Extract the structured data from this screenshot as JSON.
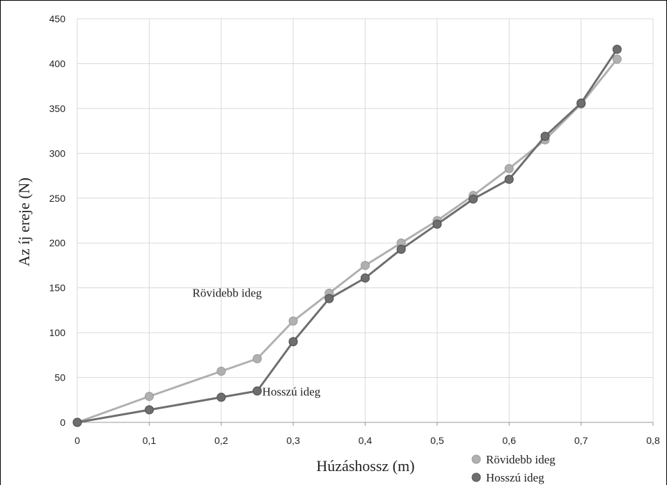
{
  "chart_data": {
    "type": "line",
    "title": "",
    "xlabel": "Húzáshossz (m)",
    "ylabel": "Az íj ereje (N)",
    "xlim": [
      0,
      0.8
    ],
    "ylim": [
      0,
      450
    ],
    "x_ticks": [
      0,
      0.1,
      0.2,
      0.3,
      0.4,
      0.5,
      0.6,
      0.7,
      0.8
    ],
    "x_tick_labels": [
      "0",
      "0,1",
      "0,2",
      "0,3",
      "0,4",
      "0,5",
      "0,6",
      "0,7",
      "0,8"
    ],
    "y_ticks": [
      0,
      50,
      100,
      150,
      200,
      250,
      300,
      350,
      400,
      450
    ],
    "y_tick_labels": [
      "0",
      "50",
      "100",
      "150",
      "200",
      "250",
      "300",
      "350",
      "400",
      "450"
    ],
    "grid": true,
    "legend_position": "bottom-right",
    "series": [
      {
        "name": "Rövidebb ideg",
        "color": "#b0b0b0",
        "x": [
          0,
          0.1,
          0.2,
          0.25,
          0.3,
          0.35,
          0.4,
          0.45,
          0.5,
          0.55,
          0.6,
          0.65,
          0.7,
          0.75
        ],
        "y": [
          0,
          29,
          57,
          71,
          113,
          144,
          175,
          200,
          225,
          253,
          283,
          315,
          355,
          405
        ]
      },
      {
        "name": "Hosszú ideg",
        "color": "#6e6e6e",
        "x": [
          0,
          0.1,
          0.2,
          0.25,
          0.3,
          0.35,
          0.4,
          0.45,
          0.5,
          0.55,
          0.6,
          0.65,
          0.7,
          0.75
        ],
        "y": [
          0,
          14,
          28,
          35,
          90,
          138,
          161,
          193,
          221,
          249,
          271,
          319,
          356,
          416
        ]
      }
    ],
    "annotations": [
      {
        "text": "Rövidebb ideg",
        "x": 0.16,
        "y": 140
      },
      {
        "text": "Hosszú ideg",
        "x": 0.257,
        "y": 30
      }
    ]
  }
}
